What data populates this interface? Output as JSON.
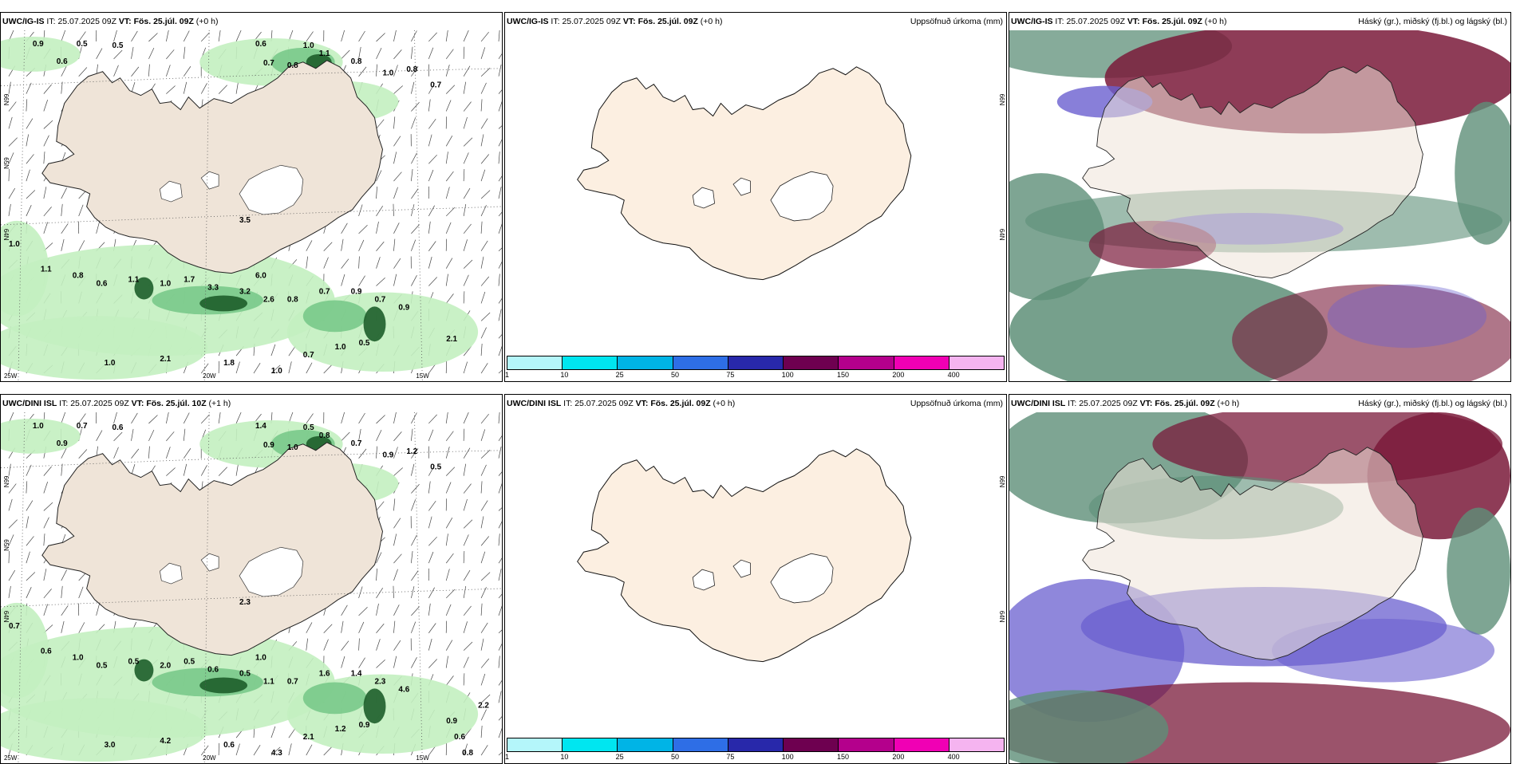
{
  "rows": [
    {
      "precip_panel": {
        "model": "UWC/IG-IS",
        "it_label": "IT:",
        "it_value": "25.07.2025 09Z",
        "vt_label": "VT:",
        "vt_value": "Fös. 25.júl. 09Z",
        "lead": "(+0 h)",
        "lat_labels": [
          "66N",
          "64N",
          "65N"
        ],
        "lon_labels": [
          "25W",
          "20W",
          "15W"
        ],
        "values": [
          "0.9",
          "0.6",
          "0.5",
          "0.5",
          "0.6",
          "1.0",
          "0.7",
          "0.8",
          "1.1",
          "0.8",
          "1.0",
          "0.8",
          "0.7",
          "1.0",
          "1.1",
          "0.8",
          "0.6",
          "1.1",
          "1.0",
          "1.7",
          "3.3",
          "3.2",
          "2.6",
          "0.8",
          "0.7",
          "0.9",
          "0.7",
          "0.9",
          "1.0",
          "2.1",
          "1.8",
          "1.0",
          "0.7",
          "1.0",
          "0.5",
          "3.5",
          "6.0",
          "2.1"
        ]
      },
      "accum_panel": {
        "model": "UWC/IG-IS",
        "it_label": "IT:",
        "it_value": "25.07.2025 09Z",
        "vt_label": "VT:",
        "vt_value": "Fös. 25.júl. 09Z",
        "lead": "(+0 h)",
        "title": "Uppsöfnuð úrkoma (mm)",
        "lat_labels": [
          "66N",
          "64N"
        ]
      },
      "cloud_panel": {
        "model": "UWC/IG-IS",
        "it_label": "IT:",
        "it_value": "25.07.2025 09Z",
        "vt_label": "VT:",
        "vt_value": "Fös. 25.júl. 09Z",
        "lead": "(+0 h)",
        "title": "Háský (gr.), miðský (fj.bl.) og lágský (bl.)"
      }
    },
    {
      "precip_panel": {
        "model": "UWC/DINI ISL",
        "it_label": "IT:",
        "it_value": "25.07.2025 09Z",
        "vt_label": "VT:",
        "vt_value": "Fös. 25.júl. 10Z",
        "lead": "(+1 h)",
        "lat_labels": [
          "66N",
          "64N",
          "65N"
        ],
        "lon_labels": [
          "25W",
          "20W",
          "15W"
        ],
        "values": [
          "1.0",
          "0.9",
          "0.7",
          "0.6",
          "1.4",
          "0.5",
          "0.9",
          "1.0",
          "0.8",
          "0.7",
          "0.9",
          "1.2",
          "0.5",
          "0.7",
          "0.6",
          "1.0",
          "0.5",
          "0.5",
          "2.0",
          "0.5",
          "0.6",
          "0.5",
          "1.1",
          "0.7",
          "1.6",
          "1.4",
          "2.3",
          "4.6",
          "3.0",
          "4.2",
          "0.6",
          "4.3",
          "2.1",
          "1.2",
          "0.9",
          "2.3",
          "1.0",
          "0.9",
          "0.6",
          "0.8",
          "2.2"
        ]
      },
      "accum_panel": {
        "model": "UWC/DINI ISL",
        "it_label": "IT:",
        "it_value": "25.07.2025 09Z",
        "vt_label": "VT:",
        "vt_value": "Fös. 25.júl. 09Z",
        "lead": "(+0 h)",
        "title": "Uppsöfnuð úrkoma (mm)",
        "lat_labels": [
          "66N",
          "64N"
        ]
      },
      "cloud_panel": {
        "model": "UWC/DINI ISL",
        "it_label": "IT:",
        "it_value": "25.07.2025 09Z",
        "vt_label": "VT:",
        "vt_value": "Fös. 25.júl. 09Z",
        "lead": "(+0 h)",
        "title": "Háský (gr.), miðský (fj.bl.) og lágský (bl.)"
      }
    }
  ],
  "legend": {
    "labels": [
      "1",
      "10",
      "25",
      "50",
      "75",
      "100",
      "150",
      "200",
      "400"
    ],
    "colors": [
      "#b4f6fa",
      "#00e6f0",
      "#00b4e6",
      "#2e6ee6",
      "#2828aa",
      "#6e0050",
      "#b4008c",
      "#f000b4",
      "#f5b4f0"
    ]
  },
  "colors": {
    "land": "#efe4d8",
    "land_accum": "#fcefe1",
    "precip_light": "#c3f0c0",
    "precip_mid": "#79c98a",
    "precip_dark": "#1d5e2a",
    "cloud_high": "#5e8f78",
    "cloud_mid": "#6a5fcf",
    "cloud_low": "#7a1a3a"
  }
}
